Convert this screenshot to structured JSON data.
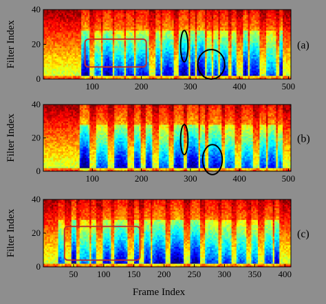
{
  "chart_data": [
    {
      "type": "heatmap",
      "panel_label": "(a)",
      "ylabel": "Filter Index",
      "xlabel": "",
      "xlim": [
        0,
        505
      ],
      "ylim": [
        0,
        40
      ],
      "xticks": [
        "100",
        "200",
        "300",
        "400",
        "500"
      ],
      "yticks": [
        "40",
        "20",
        "0"
      ],
      "colormap": "jet",
      "annotations": [
        {
          "shape": "rectangle",
          "color": "#c0302a",
          "x": [
            85,
            210
          ],
          "y": [
            7,
            23
          ]
        },
        {
          "shape": "ellipse",
          "color": "#000000",
          "x": [
            280,
            295
          ],
          "y": [
            10,
            28
          ]
        },
        {
          "shape": "ellipse",
          "color": "#000000",
          "x": [
            315,
            370
          ],
          "y": [
            0,
            17
          ]
        }
      ]
    },
    {
      "type": "heatmap",
      "panel_label": "(b)",
      "ylabel": "Filter Index",
      "xlabel": "",
      "xlim": [
        0,
        505
      ],
      "ylim": [
        0,
        40
      ],
      "xticks": [
        "100",
        "200",
        "300",
        "400",
        "500"
      ],
      "yticks": [
        "40",
        "20",
        "0"
      ],
      "colormap": "jet",
      "annotations": [
        {
          "shape": "ellipse",
          "color": "#000000",
          "x": [
            280,
            295
          ],
          "y": [
            10,
            28
          ]
        },
        {
          "shape": "ellipse",
          "color": "#000000",
          "x": [
            325,
            365
          ],
          "y": [
            -2,
            16
          ]
        }
      ]
    },
    {
      "type": "heatmap",
      "panel_label": "(c)",
      "ylabel": "Filter Index",
      "xlabel": "Frame Index",
      "xlim": [
        0,
        410
      ],
      "ylim": [
        0,
        40
      ],
      "xticks": [
        "50",
        "100",
        "150",
        "200",
        "250",
        "300",
        "350",
        "400"
      ],
      "yticks": [
        "40",
        "20",
        "0"
      ],
      "colormap": "jet",
      "annotations": [
        {
          "shape": "rectangle",
          "color": "#c0302a",
          "x": [
            35,
            160
          ],
          "y": [
            4,
            24
          ]
        }
      ]
    }
  ]
}
